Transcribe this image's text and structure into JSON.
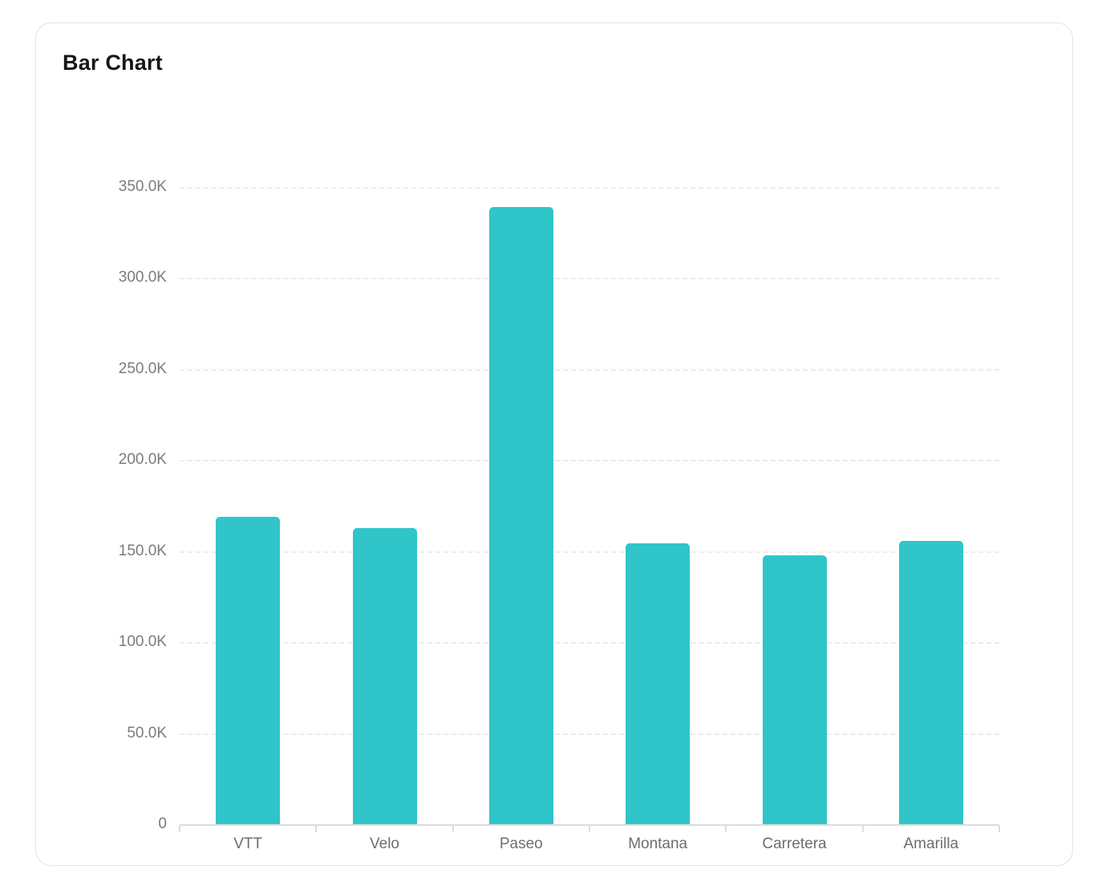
{
  "card": {
    "title": "Bar Chart"
  },
  "colors": {
    "bar": "#2FC5C9",
    "gridline": "#ededed",
    "axis": "#dcdcdc",
    "y_tick_label": "#7b7b7b",
    "x_tick_label": "#6e6e6e",
    "title": "#15151a",
    "card_border": "#e4e4e4",
    "card_bg": "#ffffff",
    "page_bg": "#ffffff"
  },
  "chart_data": {
    "type": "bar",
    "title": "Bar Chart",
    "categories": [
      "VTT",
      "Velo",
      "Paseo",
      "Montana",
      "Carretera",
      "Amarilla"
    ],
    "values": [
      169000,
      162500,
      339000,
      154500,
      147500,
      155500
    ],
    "xlabel": "",
    "ylabel": "",
    "ylim": [
      0,
      350000
    ],
    "ytick_interval": 50000,
    "ytick_labels": [
      "0",
      "50.0K",
      "100.0K",
      "150.0K",
      "200.0K",
      "250.0K",
      "300.0K",
      "350.0K"
    ],
    "grid": "horizontal-dashed",
    "legend": "none",
    "bar_color": "#2FC5C9"
  }
}
